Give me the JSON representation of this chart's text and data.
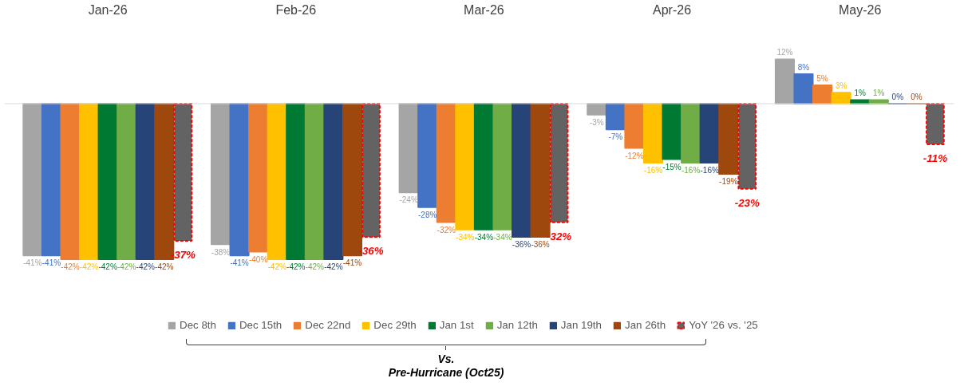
{
  "chart_data": {
    "type": "bar",
    "categories": [
      "Jan-26",
      "Feb-26",
      "Mar-26",
      "Apr-26",
      "May-26"
    ],
    "series": [
      {
        "name": "Dec 8th",
        "color": "#a5a5a5",
        "values": [
          -41,
          -38,
          -24,
          -3,
          12
        ],
        "value_labels": [
          "-41%",
          "-38%",
          "-24%",
          "-3%",
          "12%"
        ]
      },
      {
        "name": "Dec 15th",
        "color": "#4472c4",
        "values": [
          -41,
          -41,
          -28,
          -7,
          8
        ],
        "value_labels": [
          "-41%",
          "-41%",
          "-28%",
          "-7%",
          "8%"
        ]
      },
      {
        "name": "Dec 22nd",
        "color": "#ed7d31",
        "values": [
          -42,
          -40,
          -32,
          -12,
          5
        ],
        "value_labels": [
          "-42%",
          "-40%",
          "-32%",
          "-12%",
          "5%"
        ]
      },
      {
        "name": "Dec 29th",
        "color": "#ffc000",
        "values": [
          -42,
          -42,
          -34,
          -16,
          3
        ],
        "value_labels": [
          "-42%",
          "-42%",
          "-34%",
          "-16%",
          "3%"
        ]
      },
      {
        "name": "Jan 1st",
        "color": "#007a33",
        "values": [
          -42,
          -42,
          -34,
          -15,
          1
        ],
        "value_labels": [
          "-42%",
          "-42%",
          "-34%",
          "-15%",
          "1%"
        ]
      },
      {
        "name": "Jan 12th",
        "color": "#70ad47",
        "values": [
          -42,
          -42,
          -34,
          -16,
          1
        ],
        "value_labels": [
          "-42%",
          "-42%",
          "-34%",
          "-16%",
          "1%"
        ]
      },
      {
        "name": "Jan 19th",
        "color": "#264478",
        "values": [
          -42,
          -42,
          -36,
          -16,
          0
        ],
        "value_labels": [
          "-42%",
          "-42%",
          "-36%",
          "-16%",
          "0%"
        ]
      },
      {
        "name": "Jan 26th",
        "color": "#9e480e",
        "values": [
          -42,
          -41,
          -36,
          -19,
          0
        ],
        "value_labels": [
          "-42%",
          "-41%",
          "-36%",
          "-19%",
          "0%"
        ]
      },
      {
        "name": "YoY '26 vs. '25",
        "color": "#636363",
        "line_style": "dashed",
        "values": [
          -37,
          -36,
          -32,
          -23,
          -11
        ],
        "value_labels": [
          "-37%",
          "-36%",
          "-32%",
          "-23%",
          "-11%"
        ]
      }
    ],
    "legend": "bottom",
    "grid": false,
    "annotations": [
      "Vs.\nPre-Hurricane (Oct25)"
    ]
  }
}
